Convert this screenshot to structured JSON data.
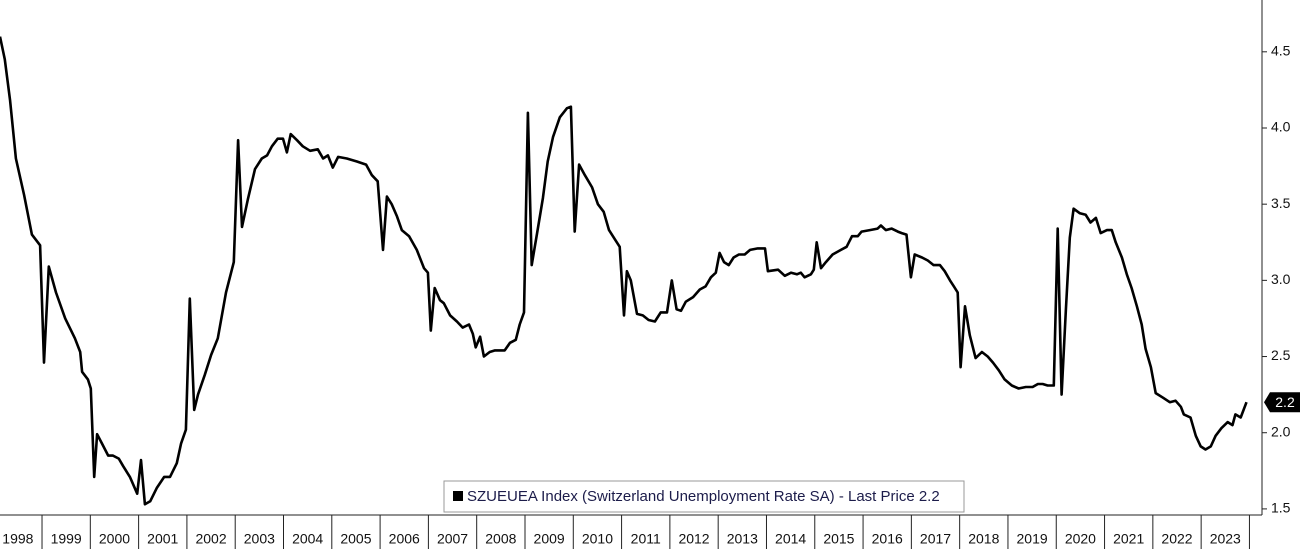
{
  "chart_data": {
    "type": "line",
    "x": [
      1998.13,
      1998.23,
      1998.34,
      1998.46,
      1998.63,
      1998.79,
      1998.96,
      1999.04,
      1999.14,
      1999.29,
      1999.48,
      1999.68,
      1999.79,
      1999.83,
      1999.95,
      2000.01,
      2000.08,
      2000.14,
      2000.24,
      2000.37,
      2000.47,
      2000.59,
      2000.68,
      2000.82,
      2000.97,
      2001.05,
      2001.13,
      2001.24,
      2001.38,
      2001.53,
      2001.65,
      2001.79,
      2001.88,
      2001.98,
      2002.06,
      2002.15,
      2002.23,
      2002.37,
      2002.5,
      2002.64,
      2002.81,
      2002.97,
      2003.06,
      2003.14,
      2003.26,
      2003.41,
      2003.55,
      2003.66,
      2003.76,
      2003.88,
      2003.99,
      2004.07,
      2004.15,
      2004.28,
      2004.4,
      2004.55,
      2004.71,
      2004.82,
      2004.92,
      2005.02,
      2005.13,
      2005.31,
      2005.52,
      2005.71,
      2005.83,
      2005.95,
      2006.06,
      2006.14,
      2006.24,
      2006.35,
      2006.45,
      2006.6,
      2006.76,
      2006.91,
      2006.99,
      2007.05,
      2007.13,
      2007.24,
      2007.32,
      2007.45,
      2007.59,
      2007.71,
      2007.84,
      2007.92,
      2007.98,
      2008.07,
      2008.15,
      2008.27,
      2008.38,
      2008.58,
      2008.69,
      2008.81,
      2008.89,
      2008.98,
      2009.06,
      2009.14,
      2009.25,
      2009.37,
      2009.47,
      2009.58,
      2009.72,
      2009.87,
      2009.95,
      2010.03,
      2010.12,
      2010.24,
      2010.39,
      2010.51,
      2010.63,
      2010.74,
      2010.86,
      2010.96,
      2011.05,
      2011.11,
      2011.19,
      2011.32,
      2011.44,
      2011.56,
      2011.69,
      2011.81,
      2011.94,
      2012.04,
      2012.14,
      2012.23,
      2012.33,
      2012.48,
      2012.62,
      2012.74,
      2012.85,
      2012.95,
      2013.03,
      2013.12,
      2013.22,
      2013.32,
      2013.43,
      2013.55,
      2013.66,
      2013.82,
      2013.97,
      2014.03,
      2014.24,
      2014.38,
      2014.51,
      2014.63,
      2014.71,
      2014.79,
      2014.92,
      2014.98,
      2015.04,
      2015.13,
      2015.23,
      2015.37,
      2015.54,
      2015.66,
      2015.77,
      2015.89,
      2015.97,
      2016.14,
      2016.3,
      2016.37,
      2016.47,
      2016.59,
      2016.72,
      2016.8,
      2016.9,
      2016.99,
      2017.07,
      2017.22,
      2017.34,
      2017.46,
      2017.59,
      2017.69,
      2017.8,
      2017.88,
      2017.96,
      2018.02,
      2018.11,
      2018.21,
      2018.33,
      2018.46,
      2018.58,
      2018.69,
      2018.81,
      2018.93,
      2019.08,
      2019.22,
      2019.37,
      2019.51,
      2019.62,
      2019.72,
      2019.82,
      2019.95,
      2020.03,
      2020.11,
      2020.2,
      2020.28,
      2020.36,
      2020.49,
      2020.61,
      2020.71,
      2020.82,
      2020.92,
      2021.05,
      2021.15,
      2021.23,
      2021.36,
      2021.46,
      2021.56,
      2021.67,
      2021.77,
      2021.85,
      2021.96,
      2022.06,
      2022.21,
      2022.35,
      2022.47,
      2022.58,
      2022.64,
      2022.78,
      2022.89,
      2022.99,
      2023.09,
      2023.2,
      2023.3,
      2023.42,
      2023.55,
      2023.65,
      2023.71,
      2023.82,
      2023.94
    ],
    "series": [
      {
        "name": "SZUEUEA Index (Switzerland Unemployment Rate SA) - Last Price 2.2",
        "color": "#000000",
        "values": [
          4.6,
          4.45,
          4.18,
          3.8,
          3.56,
          3.3,
          3.23,
          2.46,
          3.09,
          2.92,
          2.75,
          2.62,
          2.53,
          2.4,
          2.35,
          2.29,
          1.71,
          1.99,
          1.93,
          1.85,
          1.85,
          1.83,
          1.78,
          1.71,
          1.6,
          1.82,
          1.53,
          1.55,
          1.64,
          1.71,
          1.71,
          1.8,
          1.93,
          2.02,
          2.88,
          2.15,
          2.25,
          2.38,
          2.51,
          2.62,
          2.92,
          3.12,
          3.92,
          3.35,
          3.53,
          3.73,
          3.8,
          3.82,
          3.88,
          3.93,
          3.93,
          3.84,
          3.96,
          3.92,
          3.88,
          3.85,
          3.86,
          3.8,
          3.82,
          3.74,
          3.81,
          3.8,
          3.78,
          3.76,
          3.69,
          3.65,
          3.2,
          3.55,
          3.5,
          3.42,
          3.33,
          3.29,
          3.2,
          3.08,
          3.05,
          2.67,
          2.95,
          2.87,
          2.85,
          2.77,
          2.73,
          2.69,
          2.71,
          2.65,
          2.56,
          2.63,
          2.5,
          2.53,
          2.54,
          2.54,
          2.59,
          2.61,
          2.71,
          2.79,
          4.1,
          3.1,
          3.31,
          3.54,
          3.78,
          3.94,
          4.07,
          4.13,
          4.14,
          3.32,
          3.76,
          3.69,
          3.61,
          3.5,
          3.45,
          3.33,
          3.27,
          3.22,
          2.77,
          3.06,
          3.0,
          2.78,
          2.77,
          2.74,
          2.73,
          2.79,
          2.79,
          3.0,
          2.81,
          2.8,
          2.86,
          2.89,
          2.94,
          2.96,
          3.02,
          3.05,
          3.18,
          3.12,
          3.1,
          3.15,
          3.17,
          3.17,
          3.2,
          3.21,
          3.21,
          3.06,
          3.07,
          3.03,
          3.05,
          3.04,
          3.05,
          3.02,
          3.04,
          3.07,
          3.25,
          3.08,
          3.12,
          3.17,
          3.2,
          3.22,
          3.29,
          3.29,
          3.32,
          3.33,
          3.34,
          3.36,
          3.33,
          3.34,
          3.32,
          3.31,
          3.3,
          3.02,
          3.17,
          3.15,
          3.13,
          3.1,
          3.1,
          3.06,
          3.0,
          2.96,
          2.92,
          2.43,
          2.83,
          2.64,
          2.49,
          2.53,
          2.5,
          2.46,
          2.41,
          2.35,
          2.31,
          2.29,
          2.3,
          2.3,
          2.32,
          2.32,
          2.31,
          2.31,
          3.34,
          2.25,
          2.81,
          3.28,
          3.47,
          3.44,
          3.43,
          3.38,
          3.41,
          3.31,
          3.33,
          3.33,
          3.25,
          3.15,
          3.04,
          2.95,
          2.83,
          2.71,
          2.55,
          2.43,
          2.26,
          2.23,
          2.2,
          2.21,
          2.17,
          2.12,
          2.1,
          1.98,
          1.91,
          1.89,
          1.91,
          1.98,
          2.03,
          2.07,
          2.05,
          2.12,
          2.1,
          2.2
        ]
      }
    ],
    "last_value": 2.2,
    "xlim": [
      1998.13,
      2024.26
    ],
    "xticks": [
      1998,
      1999,
      2000,
      2001,
      2002,
      2003,
      2004,
      2005,
      2006,
      2007,
      2008,
      2009,
      2010,
      2011,
      2012,
      2013,
      2014,
      2015,
      2016,
      2017,
      2018,
      2019,
      2020,
      2021,
      2022,
      2023
    ],
    "ylim": [
      1.46,
      4.84
    ],
    "yticks": [
      1.5,
      {
        "value": 2,
        "label": "2.0"
      },
      2.5,
      {
        "value": 3,
        "label": "3.0"
      },
      3.5,
      {
        "value": 4,
        "label": "4.0"
      },
      4.5
    ],
    "grid": false
  }
}
